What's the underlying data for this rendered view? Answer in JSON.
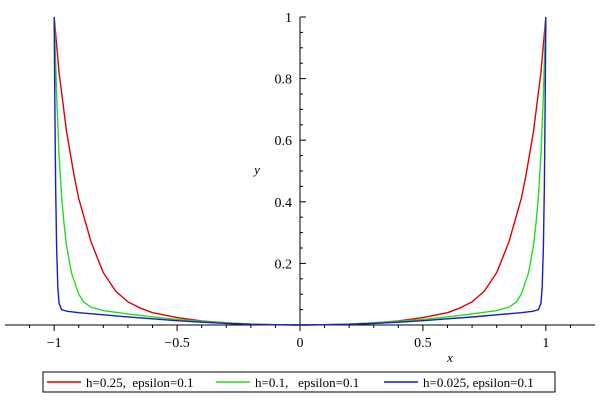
{
  "chart_data": {
    "type": "line",
    "title": "",
    "xlabel": "x",
    "ylabel": "y",
    "xlim": [
      -1.2,
      1.2
    ],
    "ylim": [
      0,
      1
    ],
    "grid": false,
    "legend_position": "bottom",
    "x_ticks": [
      -1,
      -0.5,
      0,
      0.5,
      1
    ],
    "x_tick_labels": [
      "−1",
      "−0.5",
      "0",
      "0.5",
      "1"
    ],
    "y_ticks": [
      0.2,
      0.4,
      0.6,
      0.8,
      1
    ],
    "y_tick_labels": [
      "0.2",
      "0.4",
      "0.6",
      "0.8",
      "1"
    ],
    "series": [
      {
        "name": "h=0.25,  epsilon=0.1",
        "color": "#e00000",
        "x": [
          -1,
          -0.98,
          -0.95,
          -0.92,
          -0.9,
          -0.85,
          -0.8,
          -0.75,
          -0.7,
          -0.65,
          -0.6,
          -0.5,
          -0.4,
          -0.3,
          -0.2,
          -0.1,
          0,
          0.1,
          0.2,
          0.3,
          0.4,
          0.5,
          0.6,
          0.65,
          0.7,
          0.75,
          0.8,
          0.85,
          0.9,
          0.92,
          0.95,
          0.98,
          1
        ],
        "y": [
          1.0,
          0.82,
          0.63,
          0.49,
          0.41,
          0.27,
          0.17,
          0.11,
          0.075,
          0.055,
          0.04,
          0.024,
          0.013,
          0.007,
          0.003,
          0.001,
          0,
          0.001,
          0.003,
          0.007,
          0.013,
          0.024,
          0.04,
          0.055,
          0.075,
          0.11,
          0.17,
          0.27,
          0.41,
          0.49,
          0.63,
          0.82,
          1.0
        ]
      },
      {
        "name": "h=0.1,   epsilon=0.1",
        "color": "#22dd22",
        "x": [
          -1,
          -0.99,
          -0.98,
          -0.97,
          -0.96,
          -0.95,
          -0.93,
          -0.9,
          -0.88,
          -0.85,
          -0.8,
          -0.7,
          -0.6,
          -0.5,
          -0.4,
          -0.3,
          -0.2,
          -0.1,
          0,
          0.1,
          0.2,
          0.3,
          0.4,
          0.5,
          0.6,
          0.7,
          0.8,
          0.85,
          0.88,
          0.9,
          0.93,
          0.95,
          0.96,
          0.97,
          0.98,
          0.99,
          1
        ],
        "y": [
          1.0,
          0.75,
          0.55,
          0.42,
          0.33,
          0.26,
          0.17,
          0.1,
          0.075,
          0.058,
          0.047,
          0.036,
          0.026,
          0.018,
          0.012,
          0.007,
          0.003,
          0.001,
          0,
          0.001,
          0.003,
          0.007,
          0.012,
          0.018,
          0.026,
          0.036,
          0.047,
          0.058,
          0.075,
          0.1,
          0.17,
          0.26,
          0.33,
          0.42,
          0.55,
          0.75,
          1.0
        ]
      },
      {
        "name": "h=0.025, epsilon=0.1",
        "color": "#1a1ac8",
        "x": [
          -1,
          -0.997,
          -0.994,
          -0.99,
          -0.985,
          -0.98,
          -0.97,
          -0.95,
          -0.9,
          -0.8,
          -0.7,
          -0.6,
          -0.5,
          -0.4,
          -0.3,
          -0.2,
          -0.1,
          0,
          0.1,
          0.2,
          0.3,
          0.4,
          0.5,
          0.6,
          0.7,
          0.8,
          0.9,
          0.95,
          0.97,
          0.98,
          0.985,
          0.99,
          0.994,
          0.997,
          1
        ],
        "y": [
          1.0,
          0.7,
          0.45,
          0.25,
          0.12,
          0.07,
          0.05,
          0.045,
          0.04,
          0.033,
          0.026,
          0.02,
          0.014,
          0.009,
          0.005,
          0.002,
          0.0005,
          0,
          0.0005,
          0.002,
          0.005,
          0.009,
          0.014,
          0.02,
          0.026,
          0.033,
          0.04,
          0.045,
          0.05,
          0.07,
          0.12,
          0.25,
          0.45,
          0.7,
          1.0
        ]
      }
    ]
  }
}
